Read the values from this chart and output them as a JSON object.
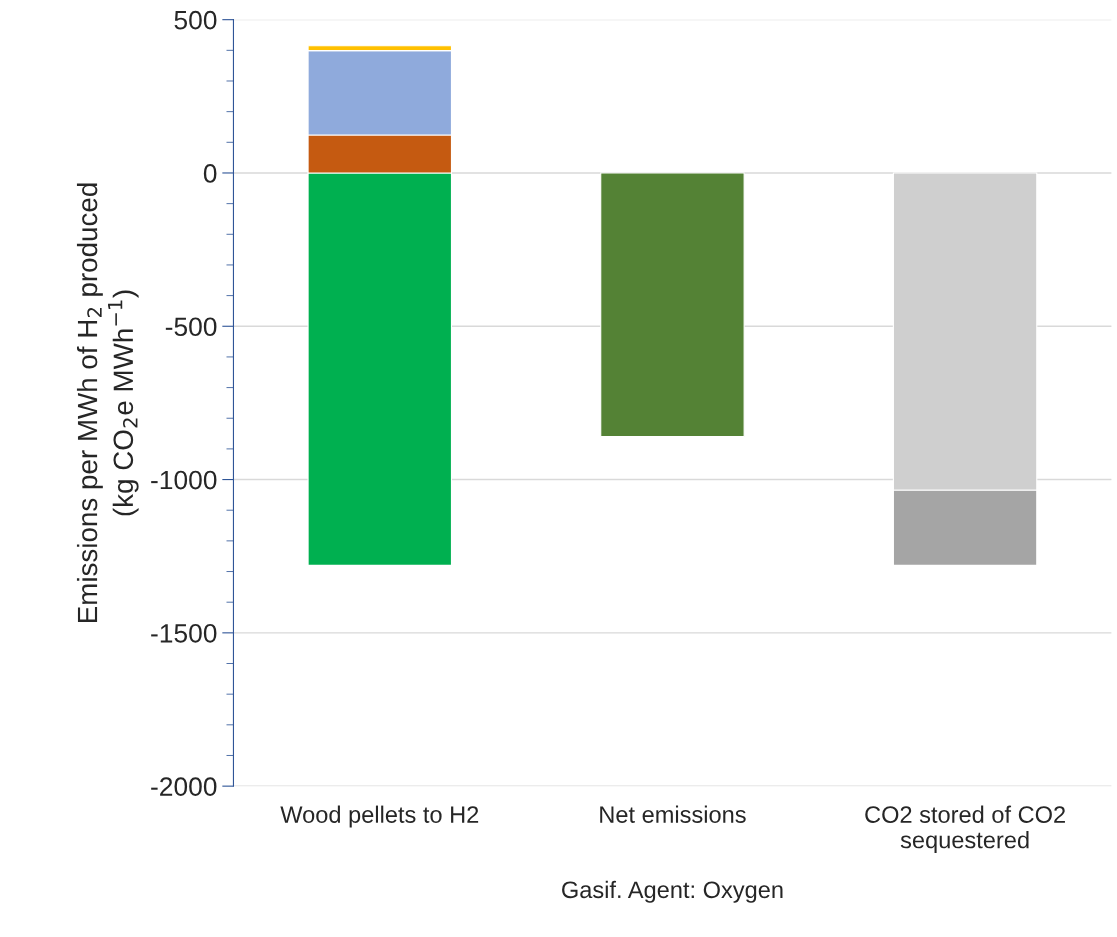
{
  "chart_data": {
    "type": "bar",
    "stacked": true,
    "categories": [
      "Wood pellets to H2",
      "Net emissions",
      "CO2 stored of CO2\nsequestered"
    ],
    "xlabel": "Gasif. Agent: Oxygen",
    "ylabel": "Emissions per MWh of H$_{2}$ produced\n(kg CO$_{2}$e MWh$^{−1}$)",
    "series": [
      {
        "color": "#00b050",
        "values": [
          -1280,
          null,
          null
        ]
      },
      {
        "color": "#c55a11",
        "values": [
          124,
          null,
          null
        ]
      },
      {
        "color": "#8faadc",
        "values": [
          275,
          null,
          null
        ]
      },
      {
        "color": "#ffc000",
        "values": [
          16,
          null,
          null
        ]
      },
      {
        "color": "#548235",
        "values": [
          null,
          -860,
          null
        ]
      },
      {
        "color": "#cfcfcf",
        "values": [
          null,
          null,
          -1035
        ]
      },
      {
        "color": "#a5a5a5",
        "values": [
          null,
          null,
          -245
        ]
      }
    ],
    "ylim": [
      -2000,
      500
    ],
    "yticks": [
      -2000,
      {
        "value": -1900,
        "label": null
      },
      {
        "value": -1800,
        "label": null
      },
      {
        "value": -1700,
        "label": null
      },
      {
        "value": -1600,
        "label": null
      },
      -1500,
      {
        "value": -1400,
        "label": null
      },
      {
        "value": -1300,
        "label": null
      },
      {
        "value": -1200,
        "label": null
      },
      {
        "value": -1100,
        "label": null
      },
      -1000,
      {
        "value": -900,
        "label": null
      },
      {
        "value": -800,
        "label": null
      },
      {
        "value": -700,
        "label": null
      },
      {
        "value": -600,
        "label": null
      },
      -500,
      {
        "value": -400,
        "label": null
      },
      {
        "value": -300,
        "label": null
      },
      {
        "value": -200,
        "label": null
      },
      {
        "value": -100,
        "label": null
      },
      0,
      {
        "value": 100,
        "label": null
      },
      {
        "value": 200,
        "label": null
      },
      {
        "value": 300,
        "label": null
      },
      {
        "value": 400,
        "label": null
      },
      500
    ],
    "grid": "y",
    "legend": false
  }
}
